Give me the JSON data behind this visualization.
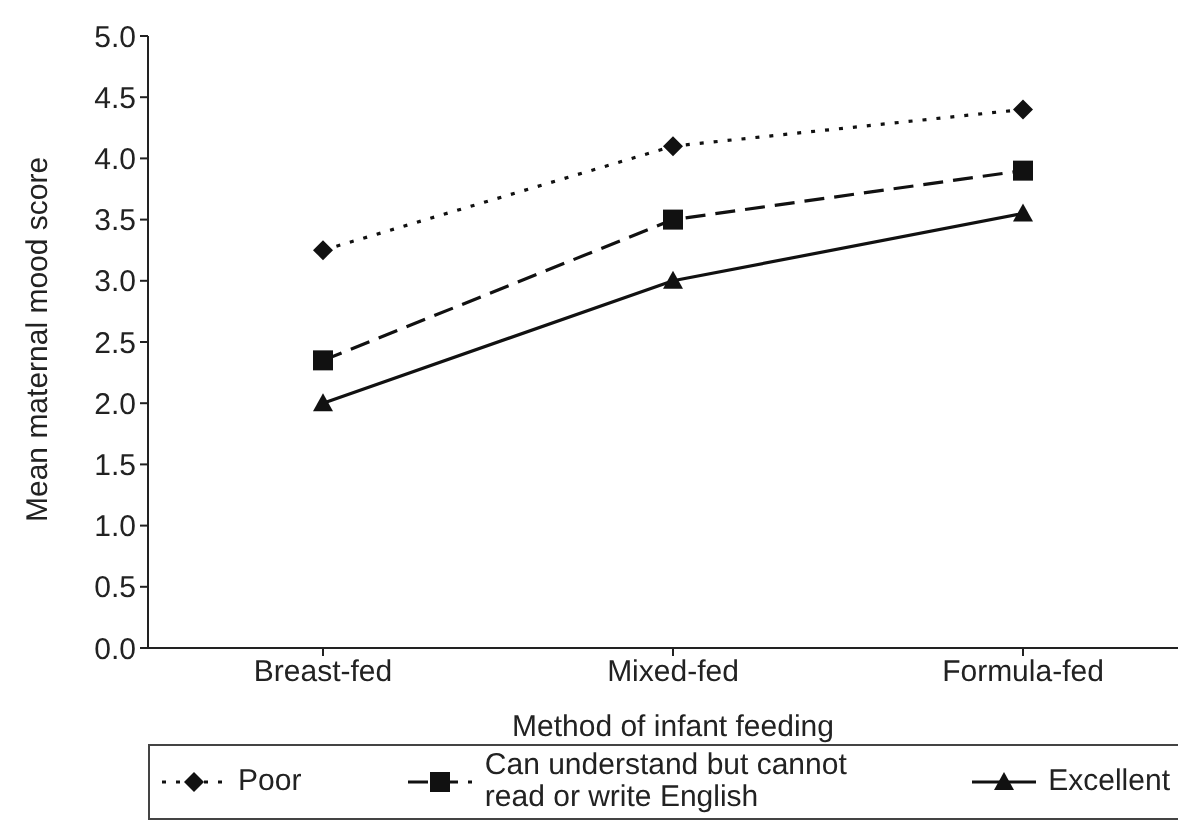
{
  "chart_data": {
    "type": "line",
    "xlabel": "Method of infant feeding",
    "ylabel": "Mean maternal mood score",
    "categories": [
      "Breast-fed",
      "Mixed-fed",
      "Formula-fed"
    ],
    "series": [
      {
        "name": "Poor",
        "color": "#111111",
        "values": [
          3.25,
          4.1,
          4.4
        ],
        "marker": "diamond",
        "line_style": "dotted"
      },
      {
        "name": "Can understand but cannot read or write English",
        "color": "#111111",
        "values": [
          2.35,
          3.5,
          3.9
        ],
        "marker": "square",
        "line_style": "dashed"
      },
      {
        "name": "Excellent",
        "color": "#111111",
        "values": [
          2.0,
          3.0,
          3.55
        ],
        "marker": "triangle",
        "line_style": "solid"
      }
    ],
    "ylim": [
      0,
      5
    ],
    "yticks": [
      {
        "value": 0,
        "label": "0.0"
      },
      0.5,
      {
        "value": 1,
        "label": "1.0"
      },
      1.5,
      {
        "value": 2,
        "label": "2.0"
      },
      2.5,
      {
        "value": 3,
        "label": "3.0"
      },
      3.5,
      {
        "value": 4,
        "label": "4.0"
      },
      4.5,
      {
        "value": 5,
        "label": "5.0"
      }
    ],
    "legend": "bottom"
  }
}
